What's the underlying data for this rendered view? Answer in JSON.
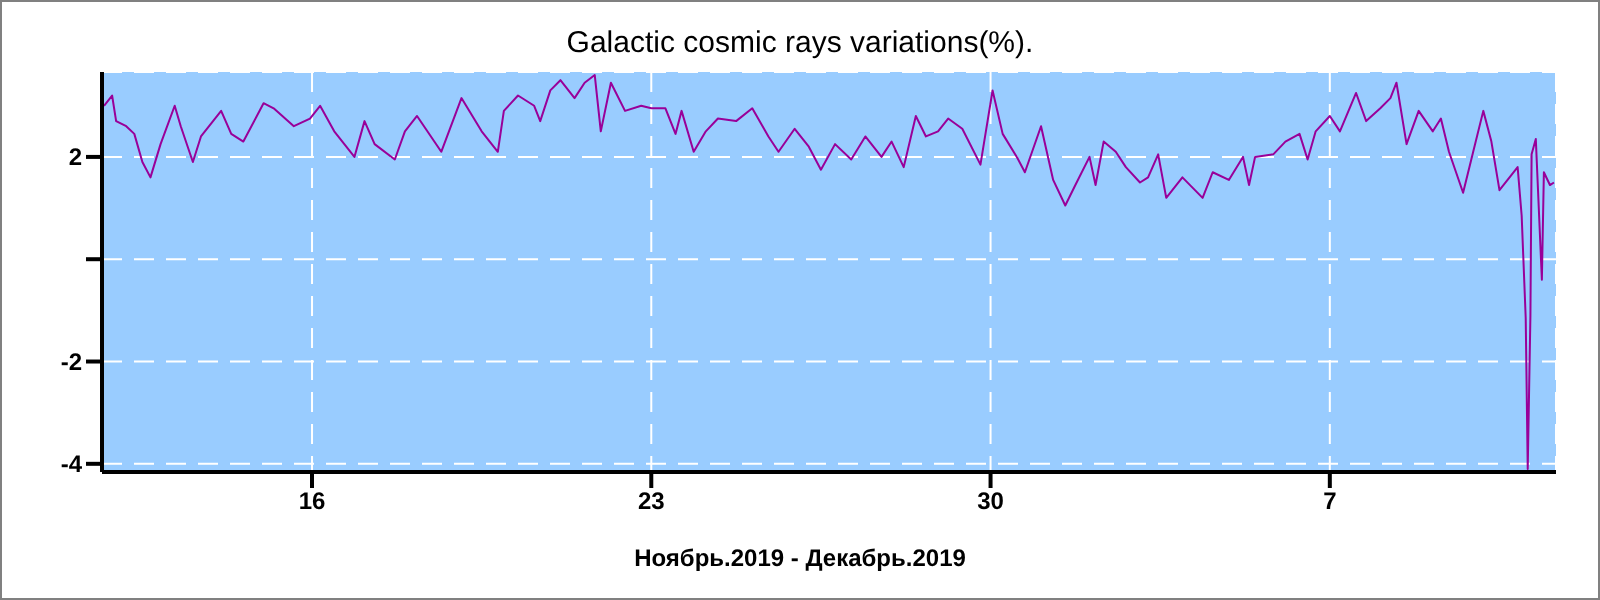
{
  "chart_data": {
    "type": "line",
    "title": "Galactic cosmic rays variations(%).",
    "xlabel": "Ноябрь.2019 - Декабрь.2019",
    "xlim": [
      "2019-11-11T16:00",
      "2019-12-11T16:00"
    ],
    "xticks": [
      {
        "value": "2019-11-16",
        "label": "16"
      },
      {
        "value": "2019-11-23",
        "label": "23"
      },
      {
        "value": "2019-11-30",
        "label": "30"
      },
      {
        "value": "2019-12-07",
        "label": "7"
      }
    ],
    "ylim": [
      -4.16,
      3.66
    ],
    "yticks": [
      2,
      {
        "value": 0,
        "label": null
      },
      -2,
      -4
    ],
    "grid": true,
    "x": [
      "2019-11-11T17:00",
      "2019-11-11T21:00",
      "2019-11-11T23:00",
      "2019-11-12T04:00",
      "2019-11-12T08:00",
      "2019-11-12T12:00",
      "2019-11-12T16:00",
      "2019-11-12T21:00",
      "2019-11-13T04:00",
      "2019-11-13T07:00",
      "2019-11-13T13:00",
      "2019-11-13T17:00",
      "2019-11-14T03:00",
      "2019-11-14T08:00",
      "2019-11-14T14:00",
      "2019-11-15T00:00",
      "2019-11-15T05:00",
      "2019-11-15T15:00",
      "2019-11-15T23:00",
      "2019-11-16T04:00",
      "2019-11-16T11:00",
      "2019-11-16T21:00",
      "2019-11-17T02:00",
      "2019-11-17T07:00",
      "2019-11-17T17:00",
      "2019-11-17T22:00",
      "2019-11-18T04:00",
      "2019-11-18T16:00",
      "2019-11-19T02:00",
      "2019-11-19T12:00",
      "2019-11-19T20:00",
      "2019-11-19T23:00",
      "2019-11-20T06:00",
      "2019-11-20T14:00",
      "2019-11-20T17:00",
      "2019-11-20T22:00",
      "2019-11-21T03:00",
      "2019-11-21T10:00",
      "2019-11-21T15:00",
      "2019-11-21T20:00",
      "2019-11-21T23:00",
      "2019-11-22T04:00",
      "2019-11-22T11:00",
      "2019-11-22T19:00",
      "2019-11-23T00:00",
      "2019-11-23T07:00",
      "2019-11-23T12:00",
      "2019-11-23T15:00",
      "2019-11-23T21:00",
      "2019-11-24T03:00",
      "2019-11-24T09:00",
      "2019-11-24T18:00",
      "2019-11-25T02:00",
      "2019-11-25T10:00",
      "2019-11-25T15:00",
      "2019-11-25T23:00",
      "2019-11-26T06:00",
      "2019-11-26T12:00",
      "2019-11-26T19:00",
      "2019-11-27T03:00",
      "2019-11-27T10:00",
      "2019-11-27T18:00",
      "2019-11-27T23:00",
      "2019-11-28T05:00",
      "2019-11-28T11:00",
      "2019-11-28T16:00",
      "2019-11-28T22:00",
      "2019-11-29T03:00",
      "2019-11-29T10:00",
      "2019-11-29T19:00",
      "2019-11-30T01:00",
      "2019-11-30T06:00",
      "2019-11-30T13:00",
      "2019-11-30T17:00",
      "2019-12-01T01:00",
      "2019-12-01T07:00",
      "2019-12-01T13:00",
      "2019-12-01T18:00",
      "2019-12-02T01:00",
      "2019-12-02T04:00",
      "2019-12-02T08:00",
      "2019-12-02T14:00",
      "2019-12-02T19:00",
      "2019-12-03T02:00",
      "2019-12-03T06:00",
      "2019-12-03T11:00",
      "2019-12-03T15:00",
      "2019-12-03T23:00",
      "2019-12-04T09:00",
      "2019-12-04T14:00",
      "2019-12-04T22:00",
      "2019-12-05T05:00",
      "2019-12-05T08:00",
      "2019-12-05T11:00",
      "2019-12-05T20:00",
      "2019-12-06T02:00",
      "2019-12-06T09:00",
      "2019-12-06T13:00",
      "2019-12-06T17:00",
      "2019-12-07T00:00",
      "2019-12-07T05:00",
      "2019-12-07T13:00",
      "2019-12-07T18:00",
      "2019-12-08T01:00",
      "2019-12-08T06:00",
      "2019-12-08T09:00",
      "2019-12-08T14:00",
      "2019-12-08T20:00",
      "2019-12-09T03:00",
      "2019-12-09T07:00",
      "2019-12-09T11:00",
      "2019-12-09T18:00",
      "2019-12-09T23:00",
      "2019-12-10T04:00",
      "2019-12-10T08:00",
      "2019-12-10T12:00",
      "2019-12-10T17:00",
      "2019-12-10T21:00",
      "2019-12-10T23:00",
      "2019-12-11T01:00",
      "2019-12-11T02:00",
      "2019-12-11T03:20",
      "2019-12-11T03:55",
      "2019-12-11T06:00",
      "2019-12-11T09:00",
      "2019-12-11T10:00",
      "2019-12-11T13:00",
      "2019-12-11T15:00"
    ],
    "series": [
      {
        "color": "#990099",
        "values": [
          3.0,
          3.2,
          2.7,
          2.6,
          2.45,
          1.9,
          1.6,
          2.25,
          3.0,
          2.6,
          1.9,
          2.4,
          2.9,
          2.45,
          2.3,
          3.05,
          2.95,
          2.6,
          2.75,
          3.0,
          2.5,
          2.0,
          2.7,
          2.25,
          1.95,
          2.5,
          2.8,
          2.1,
          3.15,
          2.5,
          2.1,
          2.9,
          3.2,
          3.0,
          2.7,
          3.3,
          3.5,
          3.15,
          3.45,
          3.6,
          2.5,
          3.45,
          2.9,
          3.0,
          2.95,
          2.95,
          2.45,
          2.9,
          2.1,
          2.5,
          2.75,
          2.7,
          2.95,
          2.4,
          2.1,
          2.55,
          2.2,
          1.75,
          2.25,
          1.95,
          2.4,
          2.0,
          2.3,
          1.8,
          2.8,
          2.4,
          2.5,
          2.75,
          2.55,
          1.85,
          3.3,
          2.45,
          2.0,
          1.7,
          2.6,
          1.55,
          1.05,
          1.45,
          2.0,
          1.45,
          2.3,
          2.1,
          1.8,
          1.5,
          1.6,
          2.05,
          1.2,
          1.6,
          1.2,
          1.7,
          1.55,
          2.0,
          1.45,
          2.0,
          2.05,
          2.3,
          2.45,
          1.95,
          2.5,
          2.8,
          2.5,
          3.25,
          2.7,
          2.95,
          3.15,
          3.45,
          2.25,
          2.9,
          2.5,
          2.75,
          2.1,
          1.3,
          2.1,
          2.9,
          2.3,
          1.35,
          1.6,
          1.8,
          0.85,
          -1.15,
          -4.1,
          -1.1,
          2.05,
          2.35,
          -0.4,
          1.7,
          1.45,
          1.5
        ]
      }
    ]
  }
}
